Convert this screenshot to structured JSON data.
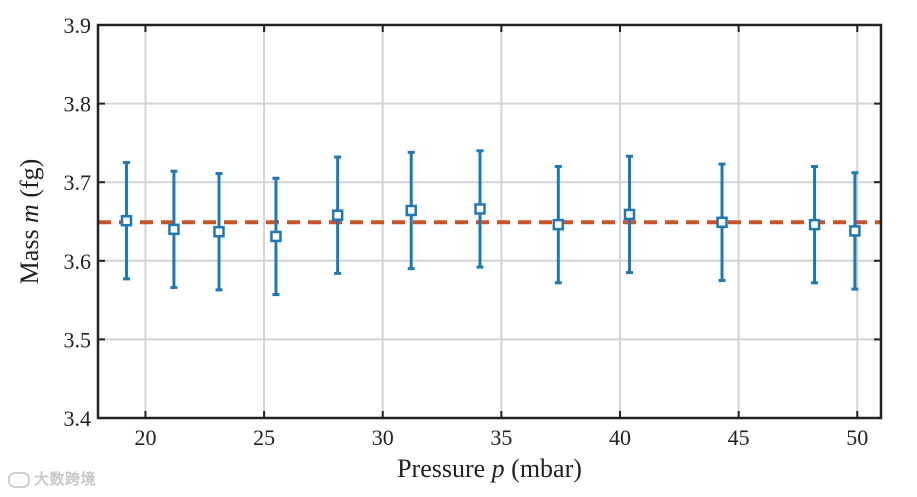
{
  "chart_data": {
    "type": "scatter",
    "xlabel_main": "Pressure ",
    "xlabel_var": "p",
    "xlabel_unit": " (mbar)",
    "ylabel_main": "Mass ",
    "ylabel_var": "m",
    "ylabel_unit": " (fg)",
    "xlim": [
      18,
      51
    ],
    "ylim": [
      3.4,
      3.9
    ],
    "xticks": [
      20,
      25,
      30,
      35,
      40,
      45,
      50
    ],
    "yticks": [
      3.4,
      3.5,
      3.6,
      3.7,
      3.8,
      3.9
    ],
    "grid": true,
    "series": [
      {
        "marker": "square",
        "color": "#1f77b4",
        "points": [
          {
            "x": 19.2,
            "y": 3.651,
            "err": 0.074
          },
          {
            "x": 21.2,
            "y": 3.64,
            "err": 0.074
          },
          {
            "x": 23.1,
            "y": 3.637,
            "err": 0.074
          },
          {
            "x": 25.5,
            "y": 3.631,
            "err": 0.074
          },
          {
            "x": 28.1,
            "y": 3.658,
            "err": 0.074
          },
          {
            "x": 31.2,
            "y": 3.664,
            "err": 0.074
          },
          {
            "x": 34.1,
            "y": 3.666,
            "err": 0.074
          },
          {
            "x": 37.4,
            "y": 3.646,
            "err": 0.074
          },
          {
            "x": 40.4,
            "y": 3.659,
            "err": 0.074
          },
          {
            "x": 44.3,
            "y": 3.649,
            "err": 0.074
          },
          {
            "x": 48.2,
            "y": 3.646,
            "err": 0.074
          },
          {
            "x": 49.9,
            "y": 3.638,
            "err": 0.074
          }
        ]
      }
    ],
    "reference_line": {
      "y": 3.649,
      "style": "dashed",
      "color": "#c8542a"
    }
  },
  "watermark": {
    "text": "大数跨境"
  }
}
